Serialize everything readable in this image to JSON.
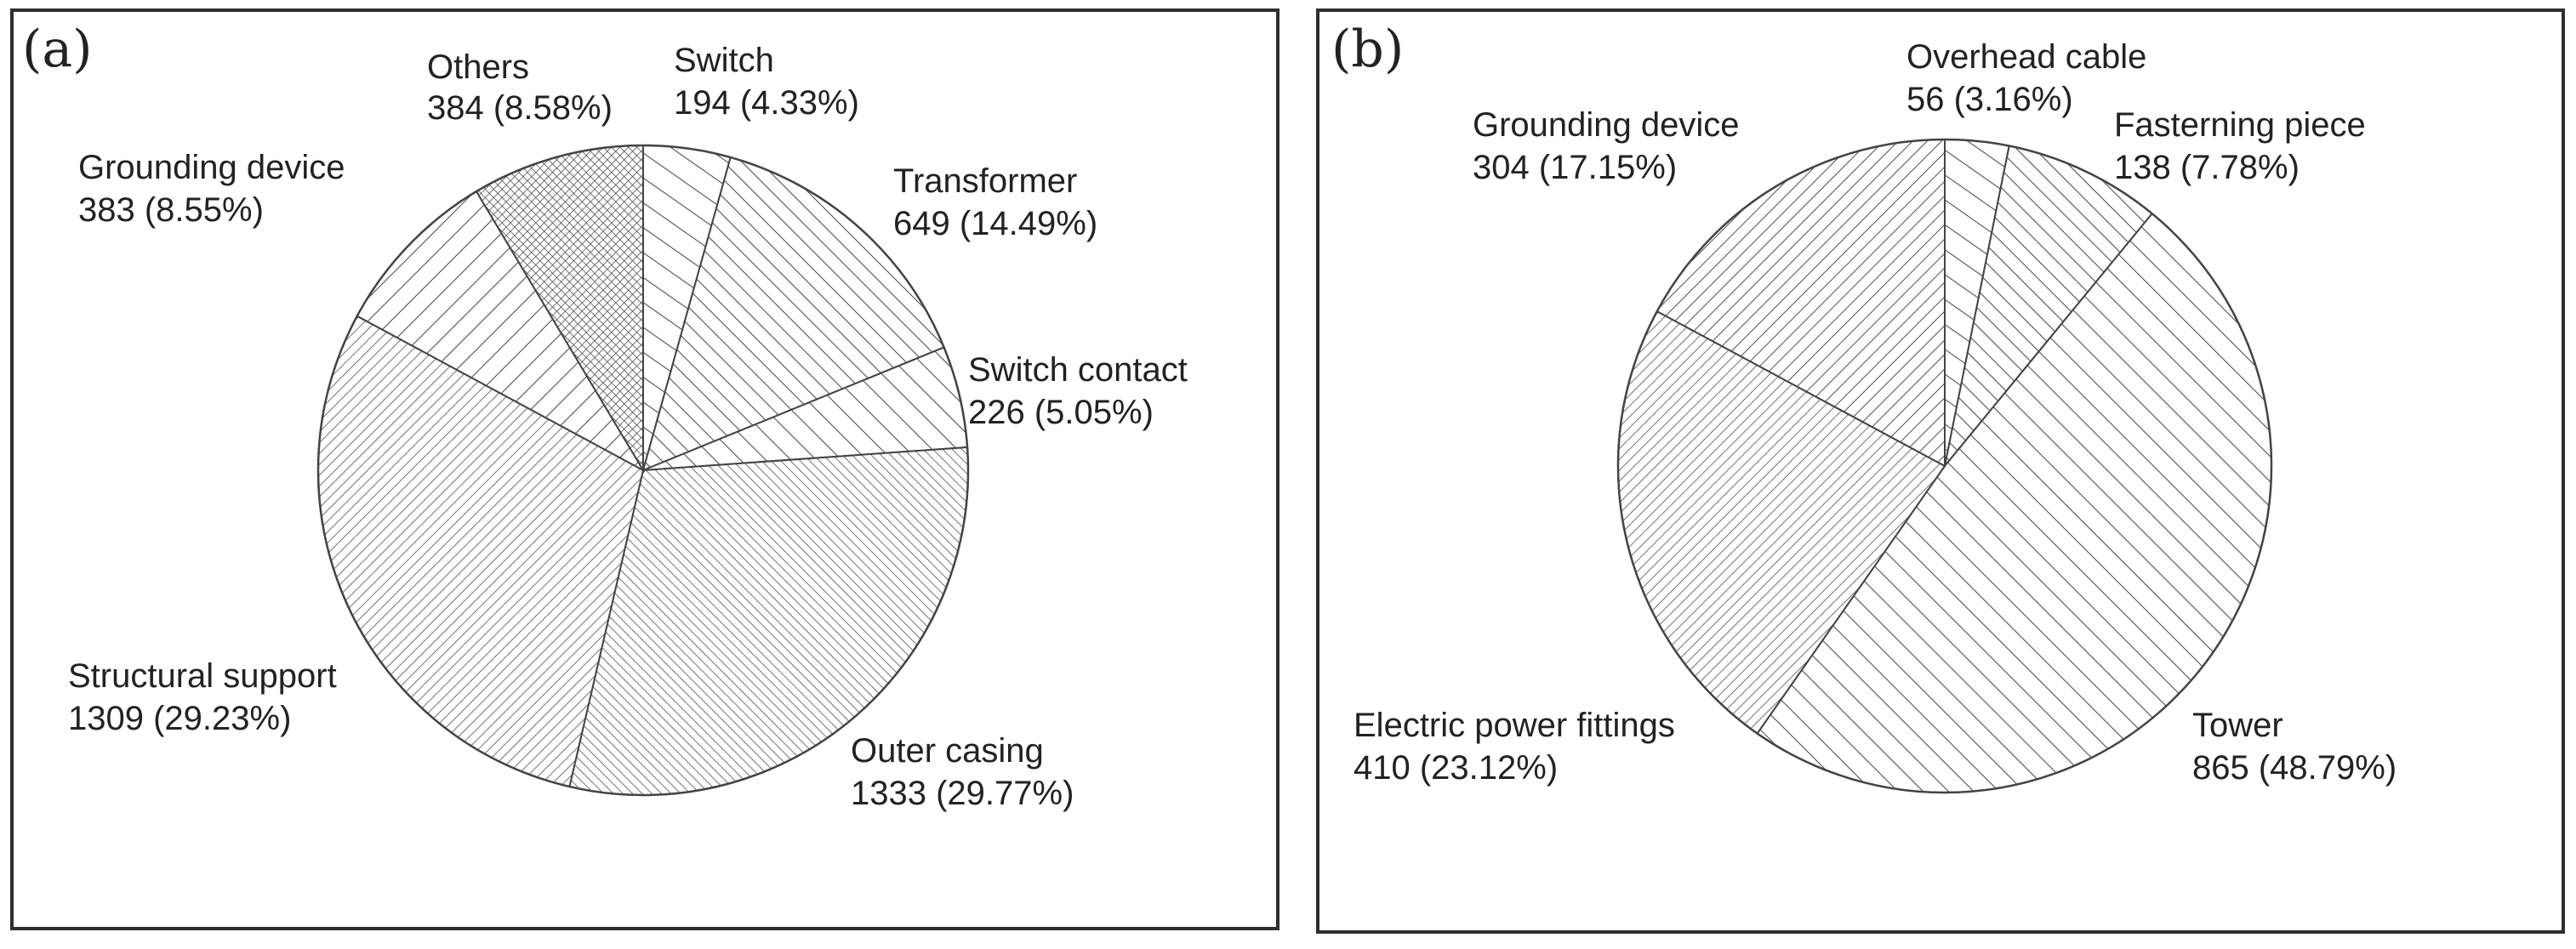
{
  "colors": {
    "stroke": "#444444",
    "hatch": "#505050",
    "text": "#222222",
    "background": "#ffffff"
  },
  "chart_data": [
    {
      "type": "pie",
      "panel_label": "(a)",
      "title": "",
      "slices": [
        {
          "name": "Switch",
          "value": 194,
          "percent": "4.33%",
          "value_text": "194 (4.33%)",
          "pattern": "hatch-sparse-right"
        },
        {
          "name": "Transformer",
          "value": 649,
          "percent": "14.49%",
          "value_text": "649 (14.49%)",
          "pattern": "hatch-right-medium"
        },
        {
          "name": "Switch contact",
          "value": 226,
          "percent": "5.05%",
          "value_text": "226 (5.05%)",
          "pattern": "hatch-right-wide"
        },
        {
          "name": "Outer casing",
          "value": 1333,
          "percent": "29.77%",
          "value_text": "1333 (29.77%)",
          "pattern": "hatch-right-dense"
        },
        {
          "name": "Structural support",
          "value": 1309,
          "percent": "29.23%",
          "value_text": "1309 (29.23%)",
          "pattern": "hatch-left-dense"
        },
        {
          "name": "Grounding device",
          "value": 383,
          "percent": "8.55%",
          "value_text": "383 (8.55%)",
          "pattern": "hatch-left-wide"
        },
        {
          "name": "Others",
          "value": 384,
          "percent": "8.58%",
          "value_text": "384 (8.58%)",
          "pattern": "crosshatch"
        }
      ]
    },
    {
      "type": "pie",
      "panel_label": "(b)",
      "title": "",
      "slices": [
        {
          "name": "Overhead cable",
          "value": 56,
          "percent": "3.16%",
          "value_text": "56 (3.16%)",
          "pattern": "hatch-sparse-right"
        },
        {
          "name": "Fasterning piece",
          "value": 138,
          "percent": "7.78%",
          "value_text": "138 (7.78%)",
          "pattern": "hatch-right-medium"
        },
        {
          "name": "Tower",
          "value": 865,
          "percent": "48.79%",
          "value_text": "865 (48.79%)",
          "pattern": "hatch-right-wide"
        },
        {
          "name": "Electric power fittings",
          "value": 410,
          "percent": "23.12%",
          "value_text": "410 (23.12%)",
          "pattern": "hatch-left-dense"
        },
        {
          "name": "Grounding device",
          "value": 304,
          "percent": "17.15%",
          "value_text": "304 (17.15%)",
          "pattern": "hatch-left-medium"
        }
      ]
    }
  ]
}
